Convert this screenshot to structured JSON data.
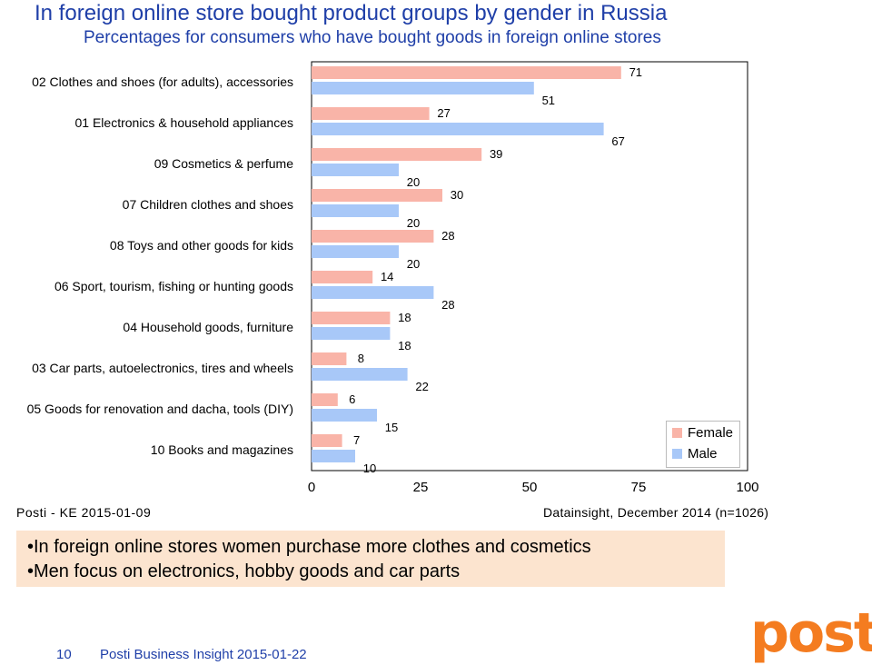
{
  "header": {
    "title": "In foreign online store bought product groups by gender in Russia",
    "subtitle": "Percentages for consumers who have bought goods in foreign online stores"
  },
  "chart_data": {
    "type": "bar",
    "orientation": "horizontal",
    "categories": [
      "02 Clothes and shoes (for adults), accessories",
      "01 Electronics & household appliances",
      "09 Cosmetics & perfume",
      "07 Children clothes and shoes",
      "08 Toys and other goods for kids",
      "06 Sport, tourism, fishing or hunting goods",
      "04 Household goods, furniture",
      "03 Car parts, autoelectronics, tires and wheels",
      "05 Goods for renovation and dacha, tools (DIY)",
      "10 Books and magazines"
    ],
    "series": [
      {
        "name": "Female",
        "color": "#f9b4a8",
        "values": [
          71,
          27,
          39,
          30,
          28,
          14,
          18,
          8,
          6,
          7
        ]
      },
      {
        "name": "Male",
        "color": "#a8c8f8",
        "values": [
          51,
          67,
          20,
          20,
          20,
          28,
          18,
          22,
          15,
          10
        ]
      }
    ],
    "xlim": [
      0,
      100
    ],
    "xticks": [
      "0",
      "25",
      "50",
      "75",
      "100"
    ],
    "legend_position": "bottom-right",
    "grid": false
  },
  "footer": {
    "source_left": "Posti - KE 2015-01-09",
    "source_right": "Datainsight, December 2014 (n=1026)"
  },
  "notes": [
    "•In foreign online stores women purchase more clothes and cosmetics",
    "•Men focus on electronics, hobby goods and car parts"
  ],
  "bottom": {
    "page_number": "10",
    "caption": "Posti Business Insight 2015-01-22"
  },
  "logo": {
    "text": "posti",
    "color": "#f47c20"
  }
}
